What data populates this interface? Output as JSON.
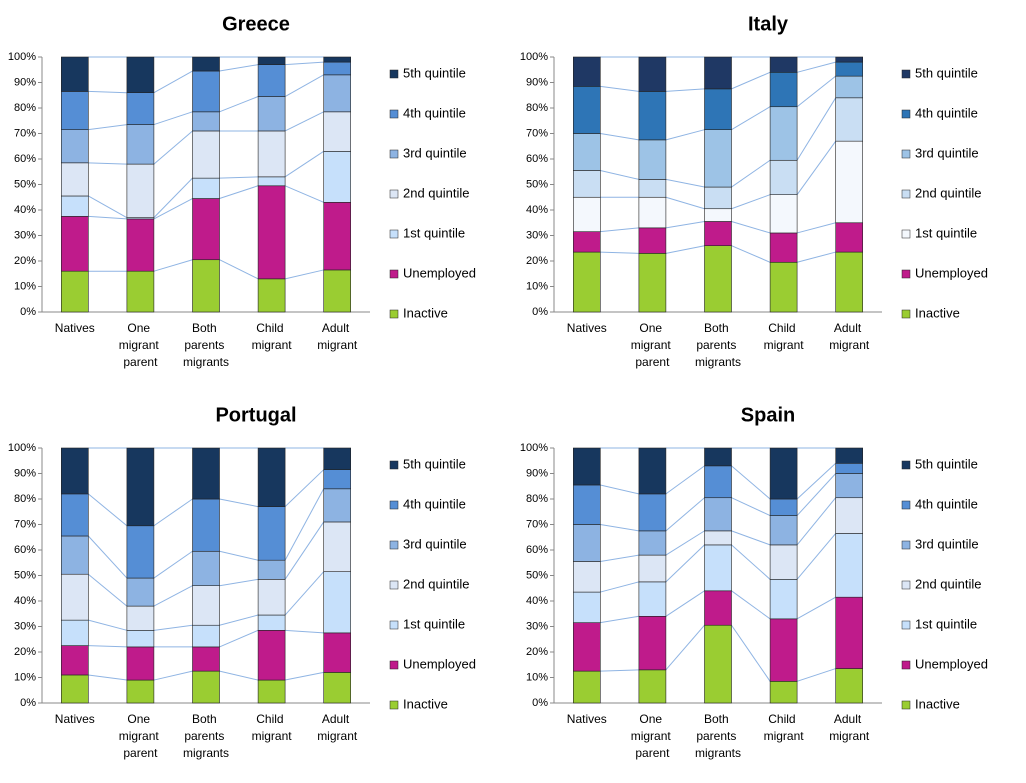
{
  "chart_data": [
    {
      "type": "bar",
      "stacked": true,
      "title": "Greece",
      "categories": [
        "Natives",
        "One migrant parent",
        "Both parents migrants",
        "Child migrant",
        "Adult migrant"
      ],
      "ylim": [
        0,
        100
      ],
      "yticks": [
        {
          "value": 0,
          "label": "0%"
        },
        {
          "value": 10,
          "label": "10%"
        },
        {
          "value": 20,
          "label": "20%"
        },
        {
          "value": 30,
          "label": "30%"
        },
        {
          "value": 40,
          "label": "40%"
        },
        {
          "value": 50,
          "label": "50%"
        },
        {
          "value": 60,
          "label": "60%"
        },
        {
          "value": 70,
          "label": "70%"
        },
        {
          "value": 80,
          "label": "80%"
        },
        {
          "value": 90,
          "label": "90%"
        },
        {
          "value": 100,
          "label": "100%"
        }
      ],
      "series": [
        {
          "name": "Inactive",
          "color": "#9acd32",
          "values": [
            16,
            16,
            20.5,
            13,
            16.5
          ]
        },
        {
          "name": "Unemployed",
          "color": "#bf1b8b",
          "values": [
            21.5,
            20.5,
            24,
            36.5,
            26.5
          ]
        },
        {
          "name": "1st quintile",
          "color": "#c6e0fb",
          "values": [
            8,
            0.5,
            8,
            3.5,
            20
          ]
        },
        {
          "name": "2nd quintile",
          "color": "#dce6f5",
          "values": [
            13,
            21,
            18.5,
            18,
            15.5
          ]
        },
        {
          "name": "3rd quintile",
          "color": "#8db3e2",
          "values": [
            13,
            15.5,
            7.5,
            13.5,
            14.5
          ]
        },
        {
          "name": "4th quintile",
          "color": "#558ed5",
          "values": [
            15,
            12.5,
            16,
            12.5,
            5
          ]
        },
        {
          "name": "5th quintile",
          "color": "#17375e",
          "values": [
            13.5,
            14,
            5.5,
            3,
            2
          ]
        }
      ]
    },
    {
      "type": "bar",
      "stacked": true,
      "title": "Italy",
      "categories": [
        "Natives",
        "One migrant parent",
        "Both parents migrants",
        "Child migrant",
        "Adult migrant"
      ],
      "ylim": [
        0,
        100
      ],
      "yticks": [
        {
          "value": 0,
          "label": "0%"
        },
        {
          "value": 10,
          "label": "10%"
        },
        {
          "value": 20,
          "label": "20%"
        },
        {
          "value": 30,
          "label": "30%"
        },
        {
          "value": 40,
          "label": "40%"
        },
        {
          "value": 50,
          "label": "50%"
        },
        {
          "value": 60,
          "label": "60%"
        },
        {
          "value": 70,
          "label": "70%"
        },
        {
          "value": 80,
          "label": "80%"
        },
        {
          "value": 90,
          "label": "90%"
        },
        {
          "value": 100,
          "label": "100%"
        }
      ],
      "series": [
        {
          "name": "Inactive",
          "color": "#9acd32",
          "values": [
            23.5,
            23,
            26,
            19.5,
            23.5
          ]
        },
        {
          "name": "Unemployed",
          "color": "#bf1b8b",
          "values": [
            8,
            10,
            9.5,
            11.5,
            11.5
          ]
        },
        {
          "name": "1st quintile",
          "color": "#f4f8fd",
          "values": [
            13.5,
            12,
            5,
            15,
            32
          ]
        },
        {
          "name": "2nd quintile",
          "color": "#c9def3",
          "values": [
            10.5,
            7,
            8.5,
            13.5,
            17
          ]
        },
        {
          "name": "3rd quintile",
          "color": "#9dc3e6",
          "values": [
            14.5,
            15.5,
            22.5,
            21,
            8.5
          ]
        },
        {
          "name": "4th quintile",
          "color": "#2e75b6",
          "values": [
            18.5,
            19,
            16,
            13.5,
            5.5
          ]
        },
        {
          "name": "5th quintile",
          "color": "#1f3864",
          "values": [
            11.5,
            13.5,
            12.5,
            6,
            2
          ]
        }
      ]
    },
    {
      "type": "bar",
      "stacked": true,
      "title": "Portugal",
      "categories": [
        "Natives",
        "One migrant parent",
        "Both parents migrants",
        "Child migrant",
        "Adult migrant"
      ],
      "ylim": [
        0,
        100
      ],
      "yticks": [
        {
          "value": 0,
          "label": "0%"
        },
        {
          "value": 10,
          "label": "10%"
        },
        {
          "value": 20,
          "label": "20%"
        },
        {
          "value": 30,
          "label": "30%"
        },
        {
          "value": 40,
          "label": "40%"
        },
        {
          "value": 50,
          "label": "50%"
        },
        {
          "value": 60,
          "label": "60%"
        },
        {
          "value": 70,
          "label": "70%"
        },
        {
          "value": 80,
          "label": "80%"
        },
        {
          "value": 90,
          "label": "90%"
        },
        {
          "value": 100,
          "label": "100%"
        }
      ],
      "series": [
        {
          "name": "Inactive",
          "color": "#9acd32",
          "values": [
            11,
            9,
            12.5,
            9,
            12
          ]
        },
        {
          "name": "Unemployed",
          "color": "#bf1b8b",
          "values": [
            11.5,
            13,
            9.5,
            19.5,
            15.5
          ]
        },
        {
          "name": "1st quintile",
          "color": "#c6e0fb",
          "values": [
            10,
            6.5,
            8.5,
            6,
            24
          ]
        },
        {
          "name": "2nd quintile",
          "color": "#dce6f5",
          "values": [
            18,
            9.5,
            15.5,
            14,
            19.5
          ]
        },
        {
          "name": "3rd quintile",
          "color": "#8db3e2",
          "values": [
            15,
            11,
            13.5,
            7.5,
            13
          ]
        },
        {
          "name": "4th quintile",
          "color": "#558ed5",
          "values": [
            16.5,
            20.5,
            20.5,
            21,
            7.5
          ]
        },
        {
          "name": "5th quintile",
          "color": "#17375e",
          "values": [
            18,
            30.5,
            20,
            23,
            8.5
          ]
        }
      ]
    },
    {
      "type": "bar",
      "stacked": true,
      "title": "Spain",
      "categories": [
        "Natives",
        "One migrant parent",
        "Both parents migrants",
        "Child migrant",
        "Adult migrant"
      ],
      "ylim": [
        0,
        100
      ],
      "yticks": [
        {
          "value": 0,
          "label": "0%"
        },
        {
          "value": 10,
          "label": "10%"
        },
        {
          "value": 20,
          "label": "20%"
        },
        {
          "value": 30,
          "label": "30%"
        },
        {
          "value": 40,
          "label": "40%"
        },
        {
          "value": 50,
          "label": "50%"
        },
        {
          "value": 60,
          "label": "60%"
        },
        {
          "value": 70,
          "label": "70%"
        },
        {
          "value": 80,
          "label": "80%"
        },
        {
          "value": 90,
          "label": "90%"
        },
        {
          "value": 100,
          "label": "100%"
        }
      ],
      "series": [
        {
          "name": "Inactive",
          "color": "#9acd32",
          "values": [
            12.5,
            13,
            30.5,
            8.5,
            13.5
          ]
        },
        {
          "name": "Unemployed",
          "color": "#bf1b8b",
          "values": [
            19,
            21,
            13.5,
            24.5,
            28
          ]
        },
        {
          "name": "1st quintile",
          "color": "#c6e0fb",
          "values": [
            12,
            13.5,
            18,
            15.5,
            25
          ]
        },
        {
          "name": "2nd quintile",
          "color": "#dce6f5",
          "values": [
            12,
            10.5,
            5.5,
            13.5,
            14
          ]
        },
        {
          "name": "3rd quintile",
          "color": "#8db3e2",
          "values": [
            14.5,
            9.5,
            13,
            11.5,
            9.5
          ]
        },
        {
          "name": "4th quintile",
          "color": "#558ed5",
          "values": [
            15.5,
            14.5,
            12.5,
            6.5,
            4
          ]
        },
        {
          "name": "5th quintile",
          "color": "#17375e",
          "values": [
            14.5,
            18,
            7,
            20,
            6
          ]
        }
      ]
    }
  ]
}
